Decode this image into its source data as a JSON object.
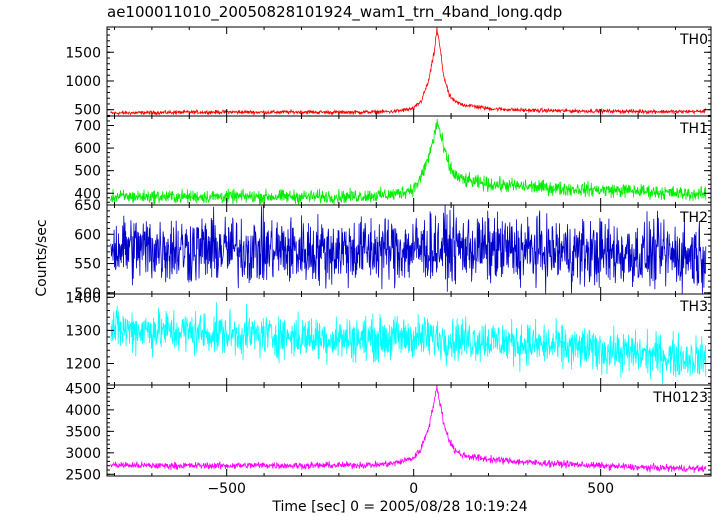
{
  "chart_data": {
    "type": "line",
    "title": "ae100011010_20050828101924_wam1_trn_4band_long.qdp",
    "xlabel": "Time [sec] 0 = 2005/08/28 10:19:24",
    "ylabel": "Counts/sec",
    "xlim": [
      -820,
      795
    ],
    "x_ticks": [
      -500,
      0,
      500
    ],
    "x_tick_labels": [
      "−500",
      "0",
      "500"
    ],
    "grid": false,
    "legend": "none",
    "panels": [
      {
        "name": "TH0",
        "color": "#ff0000",
        "ylim": [
          390,
          1940
        ],
        "y_ticks": [
          500,
          1000,
          1500
        ],
        "series": {
          "x": [
            -810,
            -700,
            -600,
            -500,
            -400,
            -300,
            -200,
            -100,
            -50,
            0,
            20,
            40,
            55,
            62,
            70,
            80,
            95,
            110,
            130,
            160,
            200,
            300,
            400,
            500,
            600,
            700,
            780
          ],
          "y": [
            440,
            450,
            455,
            460,
            455,
            460,
            455,
            460,
            470,
            520,
            650,
            1000,
            1500,
            1900,
            1600,
            1100,
            750,
            640,
            590,
            560,
            520,
            490,
            480,
            475,
            470,
            465,
            470
          ]
        }
      },
      {
        "name": "TH1",
        "color": "#00ee00",
        "ylim": [
          348,
          742
        ],
        "y_ticks": [
          400,
          500,
          600,
          700
        ],
        "series": {
          "x": [
            -810,
            -700,
            -600,
            -500,
            -400,
            -300,
            -200,
            -100,
            -50,
            0,
            20,
            40,
            55,
            62,
            70,
            80,
            95,
            110,
            130,
            160,
            200,
            300,
            400,
            500,
            600,
            700,
            780
          ],
          "y": [
            385,
            385,
            385,
            385,
            385,
            385,
            385,
            390,
            395,
            420,
            470,
            560,
            650,
            720,
            670,
            600,
            520,
            480,
            460,
            450,
            440,
            430,
            420,
            415,
            410,
            400,
            395
          ]
        }
      },
      {
        "name": "TH2",
        "color": "#0000cc",
        "ylim": [
          498,
          650
        ],
        "y_ticks": [
          500,
          550,
          600,
          650
        ],
        "series": {
          "x": [
            -810,
            -700,
            -600,
            -500,
            -400,
            -300,
            -200,
            -100,
            0,
            100,
            200,
            300,
            400,
            500,
            600,
            700,
            780
          ],
          "y": [
            578,
            576,
            575,
            574,
            573,
            572,
            572,
            573,
            575,
            578,
            575,
            572,
            570,
            568,
            566,
            565,
            565
          ]
        }
      },
      {
        "name": "TH3",
        "color": "#00ffff",
        "ylim": [
          1135,
          1410
        ],
        "y_ticks": [
          1200,
          1300,
          1400
        ],
        "series": {
          "x": [
            -810,
            -700,
            -600,
            -500,
            -400,
            -300,
            -200,
            -100,
            0,
            100,
            200,
            300,
            400,
            500,
            600,
            700,
            780
          ],
          "y": [
            1305,
            1300,
            1295,
            1290,
            1285,
            1280,
            1275,
            1275,
            1280,
            1275,
            1270,
            1260,
            1250,
            1240,
            1230,
            1220,
            1215
          ]
        }
      },
      {
        "name": "TH0123",
        "color": "#ff00ff",
        "ylim": [
          2460,
          4580
        ],
        "y_ticks": [
          2500,
          3000,
          3500,
          4000,
          4500
        ],
        "series": {
          "x": [
            -810,
            -700,
            -600,
            -500,
            -400,
            -300,
            -200,
            -100,
            -50,
            0,
            20,
            40,
            55,
            62,
            70,
            80,
            95,
            110,
            130,
            160,
            200,
            300,
            400,
            500,
            600,
            700,
            780
          ],
          "y": [
            2720,
            2700,
            2700,
            2700,
            2710,
            2700,
            2710,
            2720,
            2760,
            2880,
            3100,
            3600,
            4200,
            4500,
            4200,
            3700,
            3300,
            3050,
            2950,
            2900,
            2850,
            2780,
            2740,
            2700,
            2660,
            2640,
            2630
          ]
        }
      }
    ]
  }
}
